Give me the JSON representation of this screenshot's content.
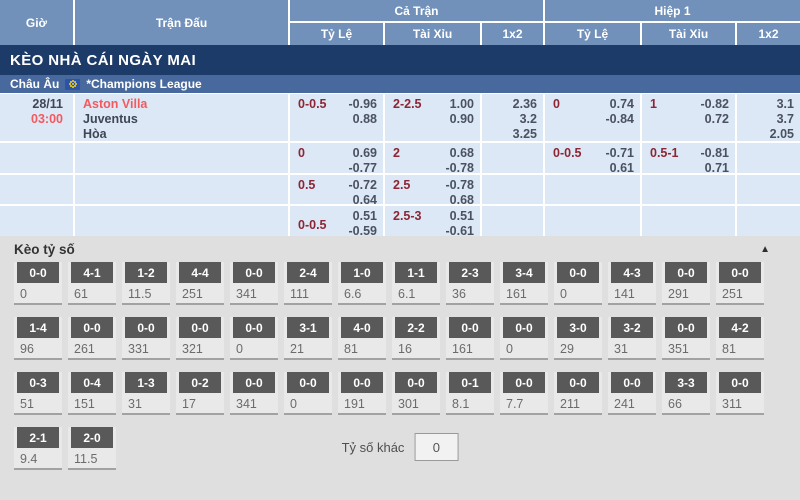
{
  "header": {
    "col_time": "Giờ",
    "col_match": "Trận Đấu",
    "group_full": "Cả Trận",
    "group_half": "Hiệp 1",
    "sub_odds": "Tỷ Lệ",
    "sub_ou": "Tài Xỉu",
    "sub_1x2": "1x2"
  },
  "banner": {
    "title": "KÈO NHÀ CÁI NGÀY MAI"
  },
  "league": {
    "region": "Châu Âu",
    "name": "*Champions League"
  },
  "match": {
    "date": "28/11",
    "time": "03:00",
    "home": "Aston Villa",
    "away": "Juventus",
    "draw_label": "Hòa"
  },
  "odds": {
    "full": {
      "rows": [
        {
          "hcp": "0-0.5",
          "hcp_v1": "-0.96",
          "hcp_v2": "0.88",
          "ou": "2-2.5",
          "ou_v1": "1.00",
          "ou_v2": "0.90",
          "x1": "2.36",
          "x2": "3.2",
          "x3": "3.25"
        },
        {
          "hcp": "0",
          "hcp_v1": "0.69",
          "hcp_v2": "-0.77",
          "ou": "2",
          "ou_v1": "0.68",
          "ou_v2": "-0.78"
        },
        {
          "hcp": "0.5",
          "hcp_v1": "-0.72",
          "hcp_v2": "0.64",
          "ou": "2.5",
          "ou_v1": "-0.78",
          "ou_v2": "0.68"
        },
        {
          "hcp": "0-0.5",
          "hcp_v1": "0.51",
          "hcp_v2": "-0.59",
          "ou": "2.5-3",
          "ou_v1": "0.51",
          "ou_v2": "-0.61"
        }
      ]
    },
    "half": {
      "rows": [
        {
          "hcp": "0",
          "hcp_v1": "0.74",
          "hcp_v2": "-0.84",
          "ou": "1",
          "ou_v1": "-0.82",
          "ou_v2": "0.72",
          "x1": "3.1",
          "x2": "3.7",
          "x3": "2.05"
        },
        {
          "hcp": "0-0.5",
          "hcp_v1": "-0.71",
          "hcp_v2": "0.61",
          "ou": "0.5-1",
          "ou_v1": "-0.81",
          "ou_v2": "0.71"
        }
      ]
    }
  },
  "score": {
    "title": "Kèo tỷ số",
    "collapse_icon": "▲",
    "rows": [
      [
        {
          "s": "0-0",
          "v": "0"
        },
        {
          "s": "4-1",
          "v": "61"
        },
        {
          "s": "1-2",
          "v": "11.5"
        },
        {
          "s": "4-4",
          "v": "251"
        },
        {
          "s": "0-0",
          "v": "341"
        },
        {
          "s": "2-4",
          "v": "111"
        },
        {
          "s": "1-0",
          "v": "6.6"
        },
        {
          "s": "1-1",
          "v": "6.1"
        },
        {
          "s": "2-3",
          "v": "36"
        },
        {
          "s": "3-4",
          "v": "161"
        },
        {
          "s": "0-0",
          "v": "0"
        },
        {
          "s": "4-3",
          "v": "141"
        },
        {
          "s": "0-0",
          "v": "291"
        },
        {
          "s": "0-0",
          "v": "251"
        }
      ],
      [
        {
          "s": "1-4",
          "v": "96"
        },
        {
          "s": "0-0",
          "v": "261"
        },
        {
          "s": "0-0",
          "v": "331"
        },
        {
          "s": "0-0",
          "v": "321"
        },
        {
          "s": "0-0",
          "v": "0"
        },
        {
          "s": "3-1",
          "v": "21"
        },
        {
          "s": "4-0",
          "v": "81"
        },
        {
          "s": "2-2",
          "v": "16"
        },
        {
          "s": "0-0",
          "v": "161"
        },
        {
          "s": "0-0",
          "v": "0"
        },
        {
          "s": "3-0",
          "v": "29"
        },
        {
          "s": "3-2",
          "v": "31"
        },
        {
          "s": "0-0",
          "v": "351"
        },
        {
          "s": "4-2",
          "v": "81"
        }
      ],
      [
        {
          "s": "0-3",
          "v": "51"
        },
        {
          "s": "0-4",
          "v": "151"
        },
        {
          "s": "1-3",
          "v": "31"
        },
        {
          "s": "0-2",
          "v": "17"
        },
        {
          "s": "0-0",
          "v": "341"
        },
        {
          "s": "0-0",
          "v": "0"
        },
        {
          "s": "0-0",
          "v": "191"
        },
        {
          "s": "0-0",
          "v": "301"
        },
        {
          "s": "0-1",
          "v": "8.1"
        },
        {
          "s": "0-0",
          "v": "7.7"
        },
        {
          "s": "0-0",
          "v": "211"
        },
        {
          "s": "0-0",
          "v": "241"
        },
        {
          "s": "3-3",
          "v": "66"
        },
        {
          "s": "0-0",
          "v": "311"
        }
      ],
      [
        {
          "s": "2-1",
          "v": "9.4"
        },
        {
          "s": "2-0",
          "v": "11.5"
        }
      ]
    ],
    "other": {
      "label": "Tỷ số khác",
      "value": "0"
    }
  },
  "colors": {
    "header_blue": "#7191ba",
    "banner_navy": "#1d3b68",
    "league_blue": "#48699e",
    "row_blue": "#dce8f6",
    "handicap_maroon": "#8d2533",
    "accent_red": "#f4595e",
    "button_gray": "#595959"
  }
}
